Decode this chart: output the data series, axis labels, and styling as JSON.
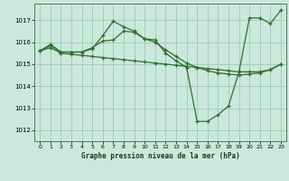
{
  "title": "Graphe pression niveau de la mer (hPa)",
  "bg_color": "#cce8dd",
  "grid_color": "#99ccbb",
  "line_color": "#2d6e2d",
  "xlim": [
    -0.5,
    23.5
  ],
  "ylim": [
    1011.5,
    1017.75
  ],
  "yticks": [
    1012,
    1013,
    1014,
    1015,
    1016,
    1017
  ],
  "xticks": [
    0,
    1,
    2,
    3,
    4,
    5,
    6,
    7,
    8,
    9,
    10,
    11,
    12,
    13,
    14,
    15,
    16,
    17,
    18,
    19,
    20,
    21,
    22,
    23
  ],
  "series": [
    {
      "x": [
        0,
        1,
        2,
        3,
        4,
        5,
        6,
        7,
        8,
        9,
        10,
        11,
        12,
        13,
        14,
        15,
        16,
        17,
        18,
        19,
        20,
        21,
        22,
        23
      ],
      "y": [
        1015.6,
        1015.9,
        1015.55,
        1015.55,
        1015.55,
        1015.7,
        1016.3,
        1016.95,
        1016.7,
        1016.5,
        1016.15,
        1016.1,
        1015.5,
        1015.15,
        1014.85,
        1012.4,
        1012.4,
        1012.7,
        1013.1,
        1014.65,
        1017.1,
        1017.1,
        1016.85,
        1017.45
      ]
    },
    {
      "x": [
        0,
        1,
        2,
        3,
        4,
        5,
        6,
        7,
        8,
        9,
        10,
        11,
        12,
        13,
        14,
        15,
        16,
        17,
        18,
        19,
        20,
        21,
        22,
        23
      ],
      "y": [
        1015.6,
        1015.85,
        1015.55,
        1015.55,
        1015.55,
        1015.75,
        1016.05,
        1016.1,
        1016.5,
        1016.45,
        1016.15,
        1016.0,
        1015.65,
        1015.35,
        1015.05,
        1014.85,
        1014.7,
        1014.6,
        1014.55,
        1014.5,
        1014.55,
        1014.6,
        1014.75,
        1015.0
      ]
    },
    {
      "x": [
        0,
        1,
        2,
        3,
        4,
        5,
        6,
        7,
        8,
        9,
        10,
        11,
        12,
        13,
        14,
        15,
        16,
        17,
        18,
        19,
        20,
        21,
        22,
        23
      ],
      "y": [
        1015.6,
        1015.75,
        1015.5,
        1015.45,
        1015.4,
        1015.35,
        1015.3,
        1015.25,
        1015.2,
        1015.15,
        1015.1,
        1015.05,
        1015.0,
        1014.95,
        1014.9,
        1014.85,
        1014.8,
        1014.75,
        1014.7,
        1014.65,
        1014.65,
        1014.65,
        1014.75,
        1015.0
      ]
    }
  ]
}
